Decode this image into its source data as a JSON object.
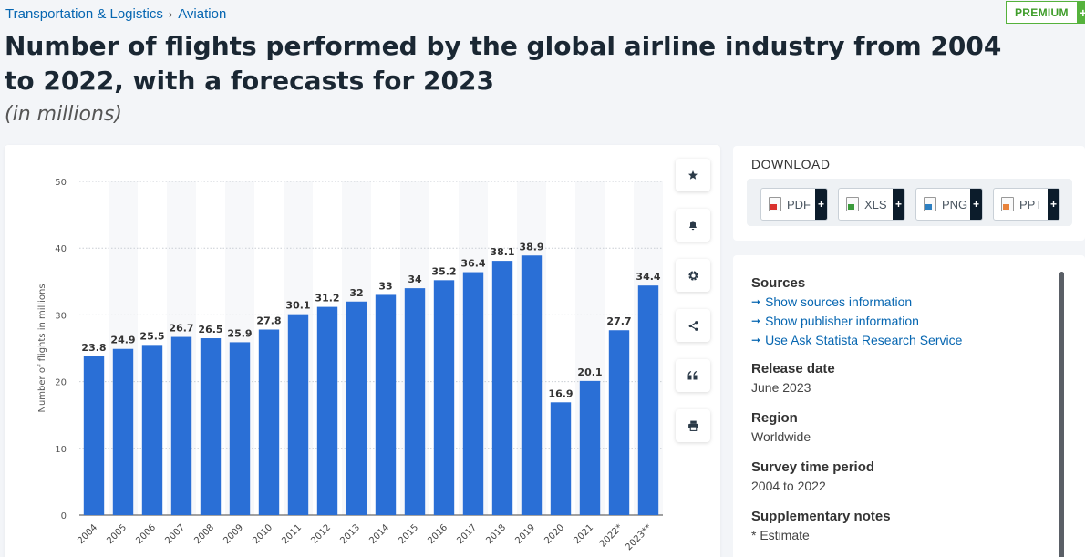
{
  "breadcrumb": {
    "items": [
      "Transportation & Logistics",
      "Aviation"
    ],
    "separator": "›"
  },
  "premium": {
    "label": "PREMIUM",
    "plus": "+"
  },
  "title": "Number of flights performed by the global airline industry from 2004 to 2022, with a forecasts for 2023",
  "subtitle": "(in millions)",
  "toolbar": {
    "icons": [
      "star-icon",
      "bell-icon",
      "gear-icon",
      "share-icon",
      "quote-icon",
      "print-icon"
    ]
  },
  "download": {
    "heading": "DOWNLOAD",
    "formats": [
      {
        "label": "PDF",
        "color": "#d9302c"
      },
      {
        "label": "XLS",
        "color": "#3a9a3a"
      },
      {
        "label": "PNG",
        "color": "#2d7fc1"
      },
      {
        "label": "PPT",
        "color": "#e8823a"
      }
    ],
    "plus": "+"
  },
  "info": {
    "sources_heading": "Sources",
    "links": [
      "Show sources information",
      "Show publisher information",
      "Use Ask Statista Research Service"
    ],
    "release_heading": "Release date",
    "release_value": "June 2023",
    "region_heading": "Region",
    "region_value": "Worldwide",
    "survey_heading": "Survey time period",
    "survey_value": "2004 to 2022",
    "notes_heading": "Supplementary notes",
    "notes_value": "* Estimate"
  },
  "chart_data": {
    "type": "bar",
    "categories": [
      "2004",
      "2005",
      "2006",
      "2007",
      "2008",
      "2009",
      "2010",
      "2011",
      "2012",
      "2013",
      "2014",
      "2015",
      "2016",
      "2017",
      "2018",
      "2019",
      "2020",
      "2021",
      "2022*",
      "2023**"
    ],
    "values": [
      23.8,
      24.9,
      25.5,
      26.7,
      26.5,
      25.9,
      27.8,
      30.1,
      31.2,
      32,
      33,
      34,
      35.2,
      36.4,
      38.1,
      38.9,
      16.9,
      20.1,
      27.7,
      34.4
    ],
    "value_labels": [
      "23.8",
      "24.9",
      "25.5",
      "26.7",
      "26.5",
      "25.9",
      "27.8",
      "30.1",
      "31.2",
      "32",
      "33",
      "34",
      "35.2",
      "36.4",
      "38.1",
      "38.9",
      "16.9",
      "20.1",
      "27.7",
      "34.4"
    ],
    "ylabel": "Number of flights in millions",
    "ylim": [
      0,
      50
    ],
    "yticks": [
      0,
      10,
      20,
      30,
      40,
      50
    ],
    "grid": true,
    "bar_color": "#2a6fd6"
  }
}
